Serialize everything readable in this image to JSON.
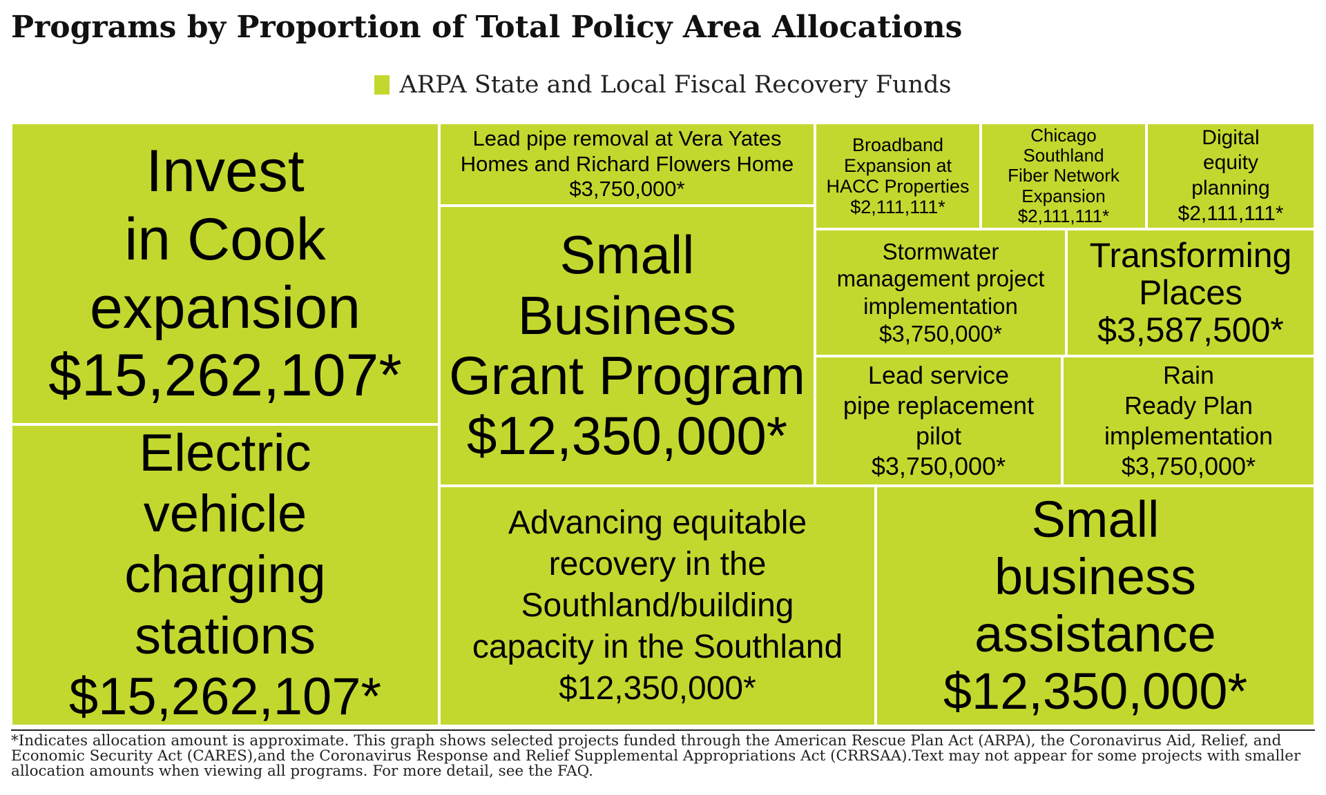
{
  "title": "Programs by Proportion of Total Policy Area Allocations",
  "legend": {
    "label": "ARPA State and Local Fiscal Recovery Funds",
    "color": "#c3d82e"
  },
  "footnote": "*Indicates allocation amount is approximate. This graph shows selected projects funded through the American Rescue Plan Act (ARPA), the Coronavirus Aid, Relief, and Economic Security Act (CARES),and the Coronavirus Response and Relief Supplemental Appropriations Act (CRRSAA).Text may not appear for some projects with smaller allocation amounts when viewing all programs. For more detail, see the FAQ.",
  "chart_data": {
    "type": "treemap",
    "title": "Programs by Proportion of Total Policy Area Allocations",
    "series_name": "ARPA State and Local Fiscal Recovery Funds",
    "color": "#c3d82e",
    "items": [
      {
        "label": "Invest in Cook expansion",
        "value": 15262107,
        "display": "$15,262,107*"
      },
      {
        "label": "Electric vehicle charging stations",
        "value": 15262107,
        "display": "$15,262,107*"
      },
      {
        "label": "Lead pipe removal at Vera Yates Homes and Richard Flowers Home",
        "value": 3750000,
        "display": "$3,750,000*"
      },
      {
        "label": "Small Business Grant Program",
        "value": 12350000,
        "display": "$12,350,000*"
      },
      {
        "label": "Broadband Expansion at HACC Properties",
        "value": 2111111,
        "display": "$2,111,111*"
      },
      {
        "label": "Chicago Southland Fiber Network Expansion",
        "value": 2111111,
        "display": "$2,111,111*"
      },
      {
        "label": "Digital equity planning",
        "value": 2111111,
        "display": "$2,111,111*"
      },
      {
        "label": "Stormwater management project implementation",
        "value": 3750000,
        "display": "$3,750,000*"
      },
      {
        "label": "Transforming Places",
        "value": 3587500,
        "display": "$3,587,500*"
      },
      {
        "label": "Lead service pipe replacement pilot",
        "value": 3750000,
        "display": "$3,750,000*"
      },
      {
        "label": "Rain Ready Plan implementation",
        "value": 3750000,
        "display": "$3,750,000*"
      },
      {
        "label": "Advancing equitable recovery in the Southland/building capacity in the Southland",
        "value": 12350000,
        "display": "$12,350,000*"
      },
      {
        "label": "Small business assistance",
        "value": 12350000,
        "display": "$12,350,000*"
      }
    ]
  }
}
